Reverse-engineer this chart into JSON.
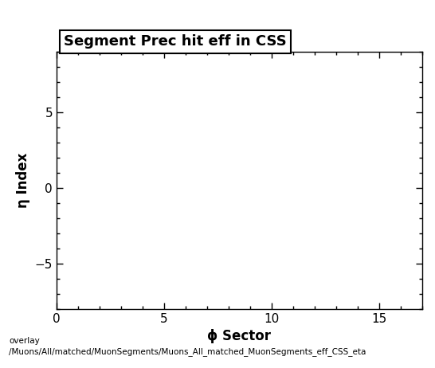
{
  "title": "Segment Prec hit eff in CSS",
  "xlabel": "ϕ Sector",
  "ylabel": "η Index",
  "xlim": [
    0,
    17
  ],
  "ylim": [
    -8,
    9
  ],
  "xticks": [
    0,
    5,
    10,
    15
  ],
  "yticks": [
    -5,
    0,
    5
  ],
  "background_color": "#ffffff",
  "plot_bg_color": "#ffffff",
  "footer_line1": "overlay",
  "footer_line2": "/Muons/All/matched/MuonSegments/Muons_All_matched_MuonSegments_eff_CSS_eta",
  "title_fontsize": 13,
  "axis_label_fontsize": 12,
  "tick_label_fontsize": 11,
  "footer_fontsize": 7.5
}
